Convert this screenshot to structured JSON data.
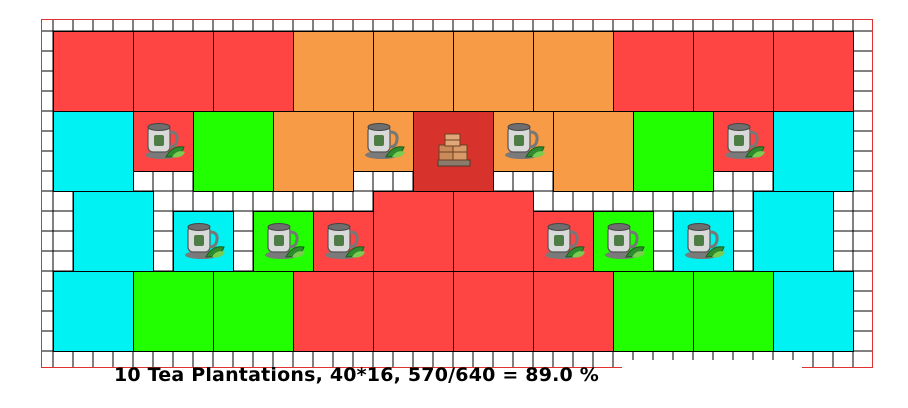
{
  "caption": "10 Tea Plantations, 40*16, 570/640 = 89.0 %",
  "colors": {
    "red": "#ff4444",
    "orange": "#f79b47",
    "cyan": "#00f2f2",
    "green": "#22ff00",
    "storehouse": "#d8322c",
    "border": "#e03030"
  },
  "icons": {
    "plantation": "tea-plantation-icon",
    "storehouse": "storehouse-crates-icon"
  },
  "plantation_count": 10
}
